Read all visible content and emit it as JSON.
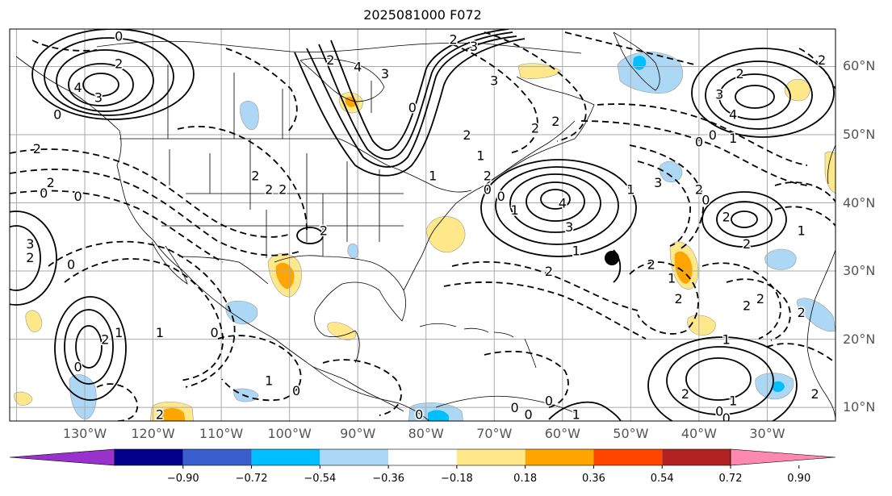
{
  "title": "2025081000 F072",
  "lon_labels": [
    {
      "lon": -130,
      "text": "130°W"
    },
    {
      "lon": -120,
      "text": "120°W"
    },
    {
      "lon": -110,
      "text": "110°W"
    },
    {
      "lon": -100,
      "text": "100°W"
    },
    {
      "lon": -90,
      "text": "90°W"
    },
    {
      "lon": -80,
      "text": "80°W"
    },
    {
      "lon": -70,
      "text": "70°W"
    },
    {
      "lon": -60,
      "text": "60°W"
    },
    {
      "lon": -50,
      "text": "50°W"
    },
    {
      "lon": -40,
      "text": "40°W"
    },
    {
      "lon": -30,
      "text": "30°W"
    }
  ],
  "lat_labels": [
    {
      "lat": 60,
      "text": "60°N"
    },
    {
      "lat": 50,
      "text": "50°N"
    },
    {
      "lat": 40,
      "text": "40°N"
    },
    {
      "lat": 30,
      "text": "30°N"
    },
    {
      "lat": 20,
      "text": "20°N"
    },
    {
      "lat": 10,
      "text": "10°N"
    }
  ],
  "colorbar": {
    "colors": [
      "#9932cc",
      "#00008b",
      "#3a5fcd",
      "#00bfff",
      "#add8f5",
      "#ffffff",
      "#ffe88a",
      "#ffa500",
      "#ff4500",
      "#b22222",
      "#ff88b0"
    ],
    "labels": [
      "−0.90",
      "−0.72",
      "−0.54",
      "−0.36",
      "−0.18",
      "0.18",
      "0.36",
      "0.54",
      "0.72",
      "0.90"
    ]
  },
  "contour_labels": [
    {
      "lon": -131,
      "lat": 57,
      "text": "4"
    },
    {
      "lon": -128,
      "lat": 55.5,
      "text": "3"
    },
    {
      "lon": -125,
      "lat": 60.5,
      "text": "2"
    },
    {
      "lon": -125,
      "lat": 64.5,
      "text": "0"
    },
    {
      "lon": -134,
      "lat": 53,
      "text": "0"
    },
    {
      "lon": -137,
      "lat": 48,
      "text": "2"
    },
    {
      "lon": -135,
      "lat": 43,
      "text": "2"
    },
    {
      "lon": -136,
      "lat": 41.5,
      "text": "0"
    },
    {
      "lon": -131,
      "lat": 41,
      "text": "0"
    },
    {
      "lon": -138,
      "lat": 34,
      "text": "3"
    },
    {
      "lon": -138,
      "lat": 32,
      "text": "2"
    },
    {
      "lon": -132,
      "lat": 31,
      "text": "0"
    },
    {
      "lon": -105,
      "lat": 44,
      "text": "2"
    },
    {
      "lon": -103,
      "lat": 42,
      "text": "2"
    },
    {
      "lon": -86,
      "lat": 59,
      "text": "3"
    },
    {
      "lon": -94,
      "lat": 61,
      "text": "2"
    },
    {
      "lon": -90,
      "lat": 60,
      "text": "4"
    },
    {
      "lon": -82,
      "lat": 54,
      "text": "0"
    },
    {
      "lon": -73,
      "lat": 63,
      "text": "3"
    },
    {
      "lon": -70,
      "lat": 58,
      "text": "3"
    },
    {
      "lon": -76,
      "lat": 64,
      "text": "2"
    },
    {
      "lon": -64,
      "lat": 51,
      "text": "2"
    },
    {
      "lon": -61,
      "lat": 52,
      "text": "2"
    },
    {
      "lon": -74,
      "lat": 50,
      "text": "2"
    },
    {
      "lon": -72,
      "lat": 47,
      "text": "1"
    },
    {
      "lon": -71,
      "lat": 44,
      "text": "2"
    },
    {
      "lon": -71,
      "lat": 42,
      "text": "0"
    },
    {
      "lon": -79,
      "lat": 44,
      "text": "1"
    },
    {
      "lon": -69,
      "lat": 41,
      "text": "0"
    },
    {
      "lon": -60,
      "lat": 40,
      "text": "4"
    },
    {
      "lon": -59,
      "lat": 36.5,
      "text": "3"
    },
    {
      "lon": -67,
      "lat": 39,
      "text": "1"
    },
    {
      "lon": -58,
      "lat": 33,
      "text": "1"
    },
    {
      "lon": -62,
      "lat": 30,
      "text": "2"
    },
    {
      "lon": -50,
      "lat": 42,
      "text": "1"
    },
    {
      "lon": -46,
      "lat": 43,
      "text": "3"
    },
    {
      "lon": -40,
      "lat": 42,
      "text": "2"
    },
    {
      "lon": -39,
      "lat": 40.5,
      "text": "0"
    },
    {
      "lon": -40,
      "lat": 49,
      "text": "0"
    },
    {
      "lon": -38,
      "lat": 50,
      "text": "0"
    },
    {
      "lon": -35,
      "lat": 49.5,
      "text": "1"
    },
    {
      "lon": -37,
      "lat": 56,
      "text": "3"
    },
    {
      "lon": -35,
      "lat": 53,
      "text": "4"
    },
    {
      "lon": -34,
      "lat": 59,
      "text": "2"
    },
    {
      "lon": -22,
      "lat": 61,
      "text": "2"
    },
    {
      "lon": -36,
      "lat": 38,
      "text": "2"
    },
    {
      "lon": -33,
      "lat": 34,
      "text": "2"
    },
    {
      "lon": -25,
      "lat": 36,
      "text": "1"
    },
    {
      "lon": -47,
      "lat": 31,
      "text": "2"
    },
    {
      "lon": -44,
      "lat": 29,
      "text": "1"
    },
    {
      "lon": -43,
      "lat": 26,
      "text": "2"
    },
    {
      "lon": -33,
      "lat": 25,
      "text": "2"
    },
    {
      "lon": -31,
      "lat": 26,
      "text": "2"
    },
    {
      "lon": -25,
      "lat": 24,
      "text": "2"
    },
    {
      "lon": -36,
      "lat": 20,
      "text": "1"
    },
    {
      "lon": -42,
      "lat": 12,
      "text": "2"
    },
    {
      "lon": -37,
      "lat": 9.5,
      "text": "0"
    },
    {
      "lon": -35,
      "lat": 11,
      "text": "1"
    },
    {
      "lon": -23,
      "lat": 12,
      "text": "2"
    },
    {
      "lon": -36,
      "lat": 8.5,
      "text": "0"
    },
    {
      "lon": -125,
      "lat": 21,
      "text": "1"
    },
    {
      "lon": -127,
      "lat": 20,
      "text": "2"
    },
    {
      "lon": -131,
      "lat": 16,
      "text": "0"
    },
    {
      "lon": -119,
      "lat": 21,
      "text": "1"
    },
    {
      "lon": -111,
      "lat": 21,
      "text": "0"
    },
    {
      "lon": -103,
      "lat": 14,
      "text": "1"
    },
    {
      "lon": -99,
      "lat": 12.5,
      "text": "0"
    },
    {
      "lon": -81,
      "lat": 9,
      "text": "0"
    },
    {
      "lon": -65,
      "lat": 9,
      "text": "0"
    },
    {
      "lon": -62,
      "lat": 11,
      "text": "0"
    },
    {
      "lon": -58,
      "lat": 9,
      "text": "1"
    },
    {
      "lon": -67,
      "lat": 10,
      "text": "0"
    },
    {
      "lon": -119,
      "lat": 9,
      "text": "2"
    },
    {
      "lon": -95,
      "lat": 36,
      "text": "2"
    },
    {
      "lon": -101,
      "lat": 42,
      "text": "2"
    }
  ]
}
